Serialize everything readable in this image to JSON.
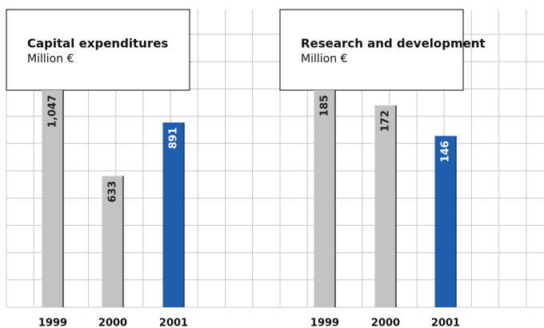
{
  "chart_data": [
    {
      "type": "bar",
      "title": "Capital expenditures",
      "subtitle": "Million €",
      "categories": [
        "1999",
        "2000",
        "2001"
      ],
      "values": [
        1047,
        633,
        891
      ],
      "value_labels": [
        "1,047",
        "633",
        "891"
      ],
      "colors": [
        "#c2c2c2",
        "#c2c2c2",
        "#1d5fae"
      ],
      "ylim": [
        0,
        1047
      ]
    },
    {
      "type": "bar",
      "title": "Research and development",
      "subtitle": "Million €",
      "categories": [
        "1999",
        "2000",
        "2001"
      ],
      "values": [
        185,
        172,
        146
      ],
      "colors": [
        "#c2c2c2",
        "#c2c2c2",
        "#1d5fae"
      ],
      "ylim": [
        0,
        185
      ]
    }
  ]
}
